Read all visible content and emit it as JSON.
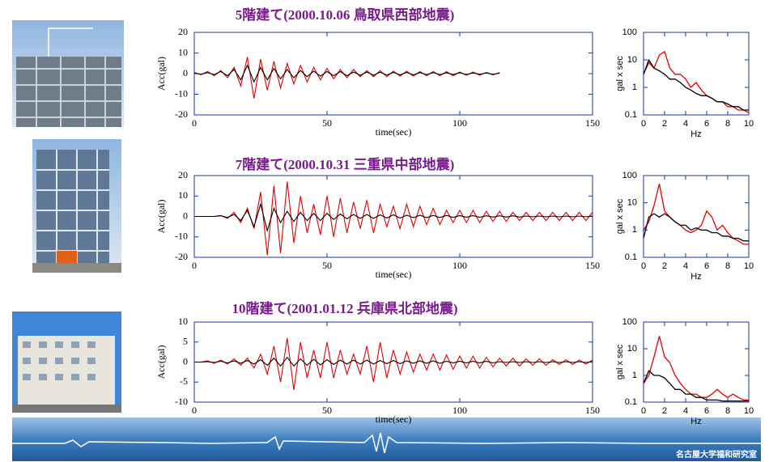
{
  "footer": "名古屋大学福和研究室",
  "chart_data": [
    {
      "type": "line",
      "title": "5階建て(2000.10.06 鳥取県西部地震)",
      "xlabel": "time(sec)",
      "ylabel": "Acc(gal)",
      "x": [
        0,
        2.5,
        5,
        7.5,
        10,
        12.5,
        15,
        17.5,
        20,
        22.5,
        25,
        27.5,
        30,
        32.5,
        35,
        37.5,
        40,
        42.5,
        45,
        47.5,
        50,
        52.5,
        55,
        57.5,
        60,
        62.5,
        65,
        67.5,
        70,
        72.5,
        75,
        77.5,
        80,
        82.5,
        85,
        87.5,
        90,
        92.5,
        95,
        97.5,
        100,
        102.5,
        105,
        107.5,
        110,
        112.5,
        115,
        117.5,
        120,
        122.5,
        125,
        127.5,
        130,
        132.5,
        135,
        137.5,
        140,
        142.5,
        145,
        147.5,
        150
      ],
      "series": [
        {
          "color": "#e00000",
          "values": [
            0.5,
            -0.5,
            1,
            -1,
            1.5,
            -2,
            3,
            -6,
            8,
            -12,
            7,
            -8,
            6,
            -7,
            5,
            -5,
            4,
            -4,
            3,
            -3,
            2.5,
            -2.5,
            2,
            -2,
            2,
            -1.5,
            1.5,
            -1.5,
            1.5,
            -1.5,
            1.2,
            -1.2,
            1.2,
            -1.2,
            1,
            -1,
            1,
            -1,
            1,
            -1,
            0.8,
            -0.8,
            0.8,
            -0.8,
            0.6,
            -0.6,
            0.5,
            null,
            null,
            null,
            null,
            null,
            null,
            null,
            null,
            null,
            null,
            null,
            null,
            null,
            null
          ]
        },
        {
          "color": "#000000",
          "values": [
            0.3,
            -0.3,
            0.5,
            -0.5,
            1,
            -1,
            2,
            -3,
            4,
            -4,
            3,
            -3,
            2.5,
            -2.5,
            2,
            -2,
            1.5,
            -1.5,
            1.2,
            -1.2,
            1,
            -1,
            1,
            -1,
            0.8,
            -0.8,
            0.8,
            -0.8,
            0.7,
            -0.7,
            0.6,
            -0.6,
            0.6,
            -0.6,
            0.5,
            -0.5,
            0.5,
            -0.5,
            0.4,
            -0.4,
            0.4,
            -0.4,
            0.3,
            -0.3,
            0.3,
            -0.3,
            0.2,
            null,
            null,
            null,
            null,
            null,
            null,
            null,
            null,
            null,
            null,
            null,
            null,
            null,
            null
          ]
        }
      ],
      "xlim": [
        0,
        150
      ],
      "ylim": [
        -20,
        20
      ],
      "xticks": [
        0,
        50,
        100,
        150
      ],
      "yticks": [
        -20,
        -10,
        0,
        10,
        20
      ]
    },
    {
      "type": "line",
      "log_y": true,
      "xlabel": "Hz",
      "ylabel": "gal x sec",
      "x": [
        0,
        0.5,
        1,
        1.5,
        2,
        2.5,
        3,
        3.5,
        4,
        4.5,
        5,
        5.5,
        6,
        6.5,
        7,
        7.5,
        8,
        8.5,
        9,
        9.5,
        10
      ],
      "series": [
        {
          "color": "#e00000",
          "values": [
            3,
            8,
            5,
            15,
            20,
            5,
            3,
            3,
            2,
            1,
            1.5,
            0.8,
            0.5,
            0.4,
            0.3,
            0.3,
            0.2,
            0.2,
            0.15,
            0.15,
            0.12
          ]
        },
        {
          "color": "#000000",
          "values": [
            3,
            10,
            5,
            4,
            3,
            2,
            2,
            1.5,
            1,
            0.8,
            0.6,
            0.5,
            0.5,
            0.4,
            0.3,
            0.3,
            0.25,
            0.2,
            0.2,
            0.15,
            0.15
          ]
        }
      ],
      "xlim": [
        0,
        10
      ],
      "ylim": [
        0.1,
        100
      ],
      "xticks": [
        0,
        2,
        4,
        6,
        8,
        10
      ],
      "yticks": [
        0.1,
        1,
        10,
        100
      ]
    },
    {
      "type": "line",
      "title": "7階建て(2000.10.31 三重県中部地震)",
      "xlabel": "time(sec)",
      "ylabel": "Acc(gal)",
      "x": [
        0,
        2.5,
        5,
        7.5,
        10,
        12.5,
        15,
        17.5,
        20,
        22.5,
        25,
        27.5,
        30,
        32.5,
        35,
        37.5,
        40,
        42.5,
        45,
        47.5,
        50,
        52.5,
        55,
        57.5,
        60,
        62.5,
        65,
        67.5,
        70,
        72.5,
        75,
        77.5,
        80,
        82.5,
        85,
        87.5,
        90,
        92.5,
        95,
        97.5,
        100,
        102.5,
        105,
        107.5,
        110,
        112.5,
        115,
        117.5,
        120,
        122.5,
        125,
        127.5,
        130,
        132.5,
        135,
        137.5,
        140,
        142.5,
        145,
        147.5,
        150
      ],
      "series": [
        {
          "color": "#e00000",
          "values": [
            0,
            0,
            0,
            0,
            0.5,
            -1,
            2,
            -3,
            4,
            -6,
            12,
            -19,
            15,
            -18,
            17,
            -13,
            10,
            -8,
            6,
            -9,
            10,
            -10,
            9,
            -8,
            7,
            -6,
            8,
            -8,
            6,
            -5,
            5,
            -6,
            6,
            -5,
            5,
            -4,
            4,
            -4,
            3,
            -3,
            3,
            -3,
            3,
            -3,
            2.5,
            -2.5,
            2.5,
            -2.5,
            2,
            -2,
            2,
            -2,
            2,
            -2,
            2,
            -2,
            2,
            -2,
            2,
            -2,
            2
          ]
        },
        {
          "color": "#000000",
          "values": [
            0,
            0,
            0,
            0,
            0.3,
            -0.5,
            1,
            -2,
            3,
            -5,
            6,
            -7,
            4,
            -3,
            2.5,
            -2.5,
            2,
            -2,
            1.5,
            -2,
            1.5,
            -1.5,
            1.2,
            -1.2,
            1,
            -1,
            1,
            -1,
            0.8,
            -0.8,
            0.8,
            -0.8,
            0.6,
            -0.6,
            0.6,
            -0.6,
            0.5,
            -0.5,
            0.5,
            -0.5,
            0.4,
            -0.4,
            0.4,
            -0.4,
            0.3,
            -0.3,
            0.3,
            -0.3,
            0.3,
            -0.3,
            0.2,
            -0.2,
            0.2,
            -0.2,
            0.2,
            -0.2,
            0.2,
            -0.2,
            0.2,
            -0.2,
            0.2
          ]
        }
      ],
      "xlim": [
        0,
        150
      ],
      "ylim": [
        -20,
        20
      ],
      "xticks": [
        0,
        50,
        100,
        150
      ],
      "yticks": [
        -20,
        -10,
        0,
        10,
        20
      ]
    },
    {
      "type": "line",
      "log_y": true,
      "xlabel": "Hz",
      "ylabel": "gal x sec",
      "x": [
        0,
        0.5,
        1,
        1.5,
        2,
        2.5,
        3,
        3.5,
        4,
        4.5,
        5,
        5.5,
        6,
        6.5,
        7,
        7.5,
        8,
        8.5,
        9,
        9.5,
        10
      ],
      "series": [
        {
          "color": "#e00000",
          "values": [
            1,
            2,
            8,
            50,
            5,
            3,
            2,
            1.5,
            1,
            0.8,
            1,
            1.5,
            5,
            3,
            1,
            1.5,
            0.8,
            0.5,
            0.4,
            0.3,
            0.3
          ]
        },
        {
          "color": "#000000",
          "values": [
            0.5,
            3,
            4,
            3,
            4,
            3,
            2,
            1.5,
            1.5,
            1,
            1.2,
            1,
            1,
            0.8,
            0.8,
            0.6,
            0.6,
            0.5,
            0.5,
            0.4,
            0.4
          ]
        }
      ],
      "xlim": [
        0,
        10
      ],
      "ylim": [
        0.1,
        100
      ],
      "xticks": [
        0,
        2,
        4,
        6,
        8,
        10
      ],
      "yticks": [
        0.1,
        1,
        10,
        100
      ]
    },
    {
      "type": "line",
      "title": "10階建て(2001.01.12 兵庫県北部地震)",
      "xlabel": "time(sec)",
      "ylabel": "Acc(gal)",
      "x": [
        0,
        2.5,
        5,
        7.5,
        10,
        12.5,
        15,
        17.5,
        20,
        22.5,
        25,
        27.5,
        30,
        32.5,
        35,
        37.5,
        40,
        42.5,
        45,
        47.5,
        50,
        52.5,
        55,
        57.5,
        60,
        62.5,
        65,
        67.5,
        70,
        72.5,
        75,
        77.5,
        80,
        82.5,
        85,
        87.5,
        90,
        92.5,
        95,
        97.5,
        100,
        102.5,
        105,
        107.5,
        110,
        112.5,
        115,
        117.5,
        120,
        122.5,
        125,
        127.5,
        130,
        132.5,
        135,
        137.5,
        140,
        142.5,
        145,
        147.5,
        150
      ],
      "series": [
        {
          "color": "#e00000",
          "values": [
            0,
            0,
            0.3,
            -0.3,
            0.5,
            -0.5,
            0.8,
            -0.8,
            1,
            -1.5,
            2,
            -3,
            4,
            -5,
            6,
            -7,
            5,
            -4,
            3,
            -4,
            5,
            -4,
            3,
            -3,
            2,
            -3,
            4,
            -5,
            5,
            -4,
            3,
            -3,
            2.5,
            -2.5,
            2,
            -2,
            2,
            -2,
            1.8,
            -1.8,
            1.5,
            -1.5,
            1.5,
            -1.5,
            1.2,
            -1.2,
            1,
            -1,
            1,
            -1,
            0.8,
            -0.8,
            0.8,
            -0.8,
            0.6,
            -0.6,
            0.6,
            -0.6,
            0.5,
            -0.5,
            0.5
          ]
        },
        {
          "color": "#000000",
          "values": [
            0,
            0,
            0.1,
            -0.1,
            0.2,
            -0.2,
            0.3,
            -0.3,
            0.4,
            -0.5,
            0.6,
            -0.8,
            1,
            -1,
            1.2,
            -1,
            0.8,
            -0.8,
            0.7,
            -0.7,
            0.6,
            -0.6,
            0.5,
            -0.5,
            0.5,
            -0.5,
            0.5,
            -0.5,
            0.4,
            -0.4,
            0.4,
            -0.4,
            0.3,
            -0.3,
            0.3,
            -0.3,
            0.3,
            -0.3,
            0.2,
            -0.2,
            0.2,
            -0.2,
            0.2,
            -0.2,
            0.2,
            -0.2,
            0.1,
            -0.1,
            0.1,
            -0.1,
            0.1,
            -0.1,
            0.1,
            -0.1,
            0.1,
            -0.1,
            0.1,
            -0.1,
            0.1,
            -0.1,
            0.1
          ]
        }
      ],
      "xlim": [
        0,
        150
      ],
      "ylim": [
        -10,
        10
      ],
      "xticks": [
        0,
        50,
        100,
        150
      ],
      "yticks": [
        -10,
        -5,
        0,
        5,
        10
      ]
    },
    {
      "type": "line",
      "log_y": true,
      "xlabel": "Hz",
      "ylabel": "gal x sec",
      "x": [
        0,
        0.5,
        1,
        1.5,
        2,
        2.5,
        3,
        3.5,
        4,
        4.5,
        5,
        5.5,
        6,
        6.5,
        7,
        7.5,
        8,
        8.5,
        9,
        9.5,
        10
      ],
      "series": [
        {
          "color": "#e00000",
          "values": [
            0.5,
            1,
            5,
            30,
            5,
            3,
            1,
            0.5,
            0.3,
            0.2,
            0.2,
            0.15,
            0.15,
            0.2,
            0.3,
            0.2,
            0.15,
            0.2,
            0.15,
            0.12,
            0.12
          ]
        },
        {
          "color": "#000000",
          "values": [
            0.5,
            1.5,
            1,
            1,
            0.8,
            0.5,
            0.3,
            0.3,
            0.2,
            0.2,
            0.15,
            0.15,
            0.12,
            0.12,
            0.12,
            0.11,
            0.11,
            0.11,
            0.11,
            0.11,
            0.11
          ]
        }
      ],
      "xlim": [
        0,
        10
      ],
      "ylim": [
        0.1,
        100
      ],
      "xticks": [
        0,
        2,
        4,
        6,
        8,
        10
      ],
      "yticks": [
        0.1,
        1,
        10,
        100
      ]
    }
  ]
}
